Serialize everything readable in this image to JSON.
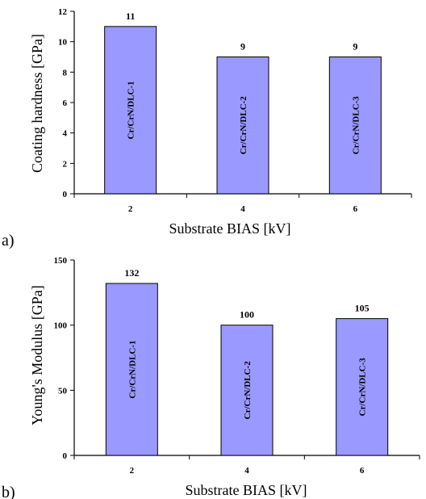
{
  "chart_data": [
    {
      "type": "bar",
      "panel_label": "a)",
      "categories": [
        "2",
        "4",
        "6"
      ],
      "values": [
        11,
        9,
        9
      ],
      "data_labels": [
        "11",
        "9",
        "9"
      ],
      "bar_labels": [
        "Cr/CrN/DLC-1",
        "Cr/CrN/DLC-2",
        "Cr/CrN/DLC-3"
      ],
      "xlabel": "Substrate BIAS [kV]",
      "ylabel": "Coating hardness [GPa]",
      "ylim": [
        0,
        12
      ],
      "yticks": [
        "0",
        "2",
        "4",
        "6",
        "8",
        "10",
        "12"
      ],
      "bar_color": "#9999ff",
      "grid": false
    },
    {
      "type": "bar",
      "panel_label": "b)",
      "categories": [
        "2",
        "4",
        "6"
      ],
      "values": [
        132,
        100,
        105
      ],
      "data_labels": [
        "132",
        "100",
        "105"
      ],
      "bar_labels": [
        "Cr/CrN/DLC-1",
        "Cr/CrN/DLC-2",
        "Cr/CrN/DLC-3"
      ],
      "xlabel": "Substrate BIAS [kV]",
      "ylabel": "Young's Modulus [GPa]",
      "ylim": [
        0,
        150
      ],
      "yticks": [
        "0",
        "50",
        "100",
        "150"
      ],
      "bar_color": "#9999ff",
      "grid": false
    }
  ]
}
